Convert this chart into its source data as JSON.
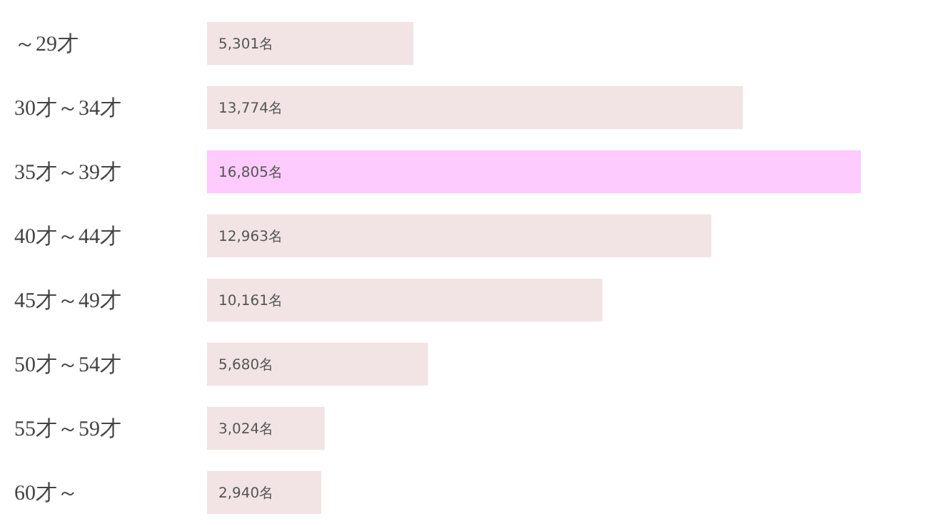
{
  "chart_data": {
    "type": "bar",
    "orientation": "horizontal",
    "categories": [
      "～29才",
      "30才～34才",
      "35才～39才",
      "40才～44才",
      "45才～49才",
      "50才～54才",
      "55才～59才",
      "60才～"
    ],
    "values": [
      5301,
      13774,
      16805,
      12963,
      10161,
      5680,
      3024,
      2940
    ],
    "colors": [
      "#f2e4e4",
      "#f2e4e4",
      "#fdcbfd",
      "#f2e4e4",
      "#f2e4e4",
      "#f2e4e4",
      "#f2e4e4",
      "#f2e4e4"
    ],
    "value_labels": [
      "5,301名",
      "13,774名",
      "16,805名",
      "12,963名",
      "10,161名",
      "5,680名",
      "3,024名",
      "2,940名"
    ]
  }
}
